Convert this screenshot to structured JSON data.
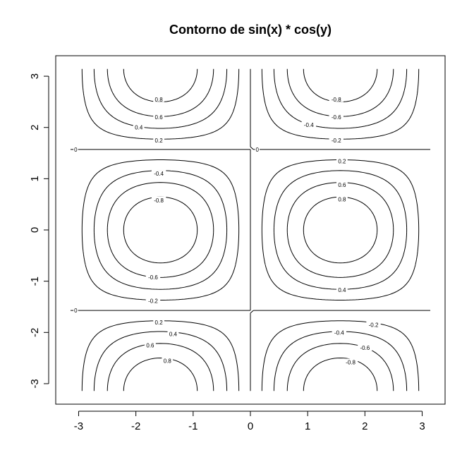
{
  "chart_data": {
    "type": "contour",
    "title": "Contorno de sin(x) * cos(y)",
    "xlabel": "",
    "ylabel": "",
    "function": "sin(x) * cos(y)",
    "x_range": [
      -3.14159,
      3.14159
    ],
    "y_range": [
      -3.14159,
      3.14159
    ],
    "xlim": [
      -3.4,
      3.4
    ],
    "ylim": [
      -3.4,
      3.4
    ],
    "x_ticks": [
      -3,
      -2,
      -1,
      0,
      1,
      2,
      3
    ],
    "x_tick_labels": [
      "-3",
      "-2",
      "-1",
      "0",
      "1",
      "2",
      "3"
    ],
    "y_ticks": [
      -3,
      -2,
      -1,
      0,
      1,
      2,
      3
    ],
    "y_tick_labels": [
      "-3",
      "-2",
      "-1",
      "0",
      "1",
      "2",
      "3"
    ],
    "levels": [
      -0.8,
      -0.6,
      -0.4,
      -0.2,
      0,
      0.2,
      0.4,
      0.6,
      0.8
    ],
    "contour_labels": [
      {
        "x": -1.6,
        "y": 2.55,
        "text": "0.8"
      },
      {
        "x": -1.6,
        "y": 2.2,
        "text": "0.6"
      },
      {
        "x": -1.95,
        "y": 2.0,
        "text": "0.4"
      },
      {
        "x": -1.6,
        "y": 1.75,
        "text": "0.2"
      },
      {
        "x": -3.05,
        "y": 1.57,
        "text": "0"
      },
      {
        "x": 0.12,
        "y": 1.57,
        "text": "0"
      },
      {
        "x": 1.5,
        "y": 2.55,
        "text": "-0.8"
      },
      {
        "x": 1.5,
        "y": 2.2,
        "text": "-0.6"
      },
      {
        "x": 1.02,
        "y": 2.05,
        "text": "-0.4"
      },
      {
        "x": 1.5,
        "y": 1.75,
        "text": "-0.2"
      },
      {
        "x": -1.6,
        "y": 1.1,
        "text": "-0.4"
      },
      {
        "x": -1.6,
        "y": 0.58,
        "text": "-0.8"
      },
      {
        "x": -1.7,
        "y": -0.92,
        "text": "-0.6"
      },
      {
        "x": -1.7,
        "y": -1.38,
        "text": "-0.2"
      },
      {
        "x": 1.6,
        "y": 1.34,
        "text": "0.2"
      },
      {
        "x": 1.6,
        "y": 0.88,
        "text": "0.6"
      },
      {
        "x": 1.6,
        "y": 0.6,
        "text": "0.8"
      },
      {
        "x": 1.6,
        "y": -1.17,
        "text": "0.4"
      },
      {
        "x": -3.05,
        "y": -1.57,
        "text": "0"
      },
      {
        "x": -1.6,
        "y": -1.8,
        "text": "0.2"
      },
      {
        "x": -1.35,
        "y": -2.03,
        "text": "0.4"
      },
      {
        "x": -1.75,
        "y": -2.25,
        "text": "0.6"
      },
      {
        "x": -1.45,
        "y": -2.55,
        "text": "0.8"
      },
      {
        "x": 2.15,
        "y": -1.85,
        "text": "-0.2"
      },
      {
        "x": 1.55,
        "y": -2.0,
        "text": "-0.4"
      },
      {
        "x": 2.0,
        "y": -2.3,
        "text": "-0.6"
      },
      {
        "x": 1.75,
        "y": -2.58,
        "text": "-0.8"
      }
    ],
    "grid": false,
    "legend": "none"
  }
}
